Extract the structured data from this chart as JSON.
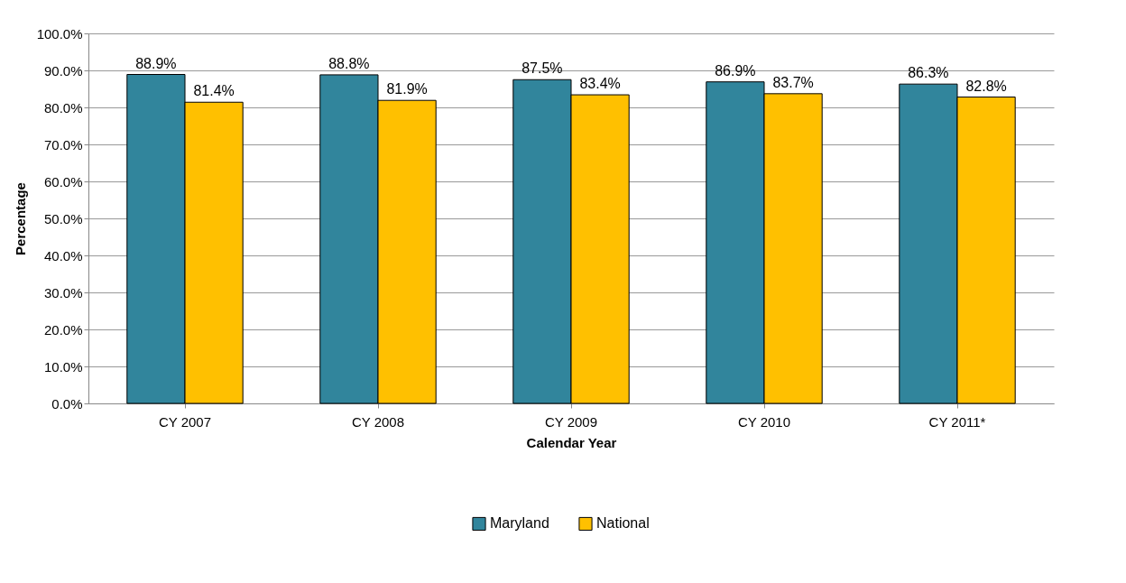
{
  "chart_data": {
    "type": "bar",
    "xlabel": "Calendar Year",
    "ylabel": "Percentage",
    "categories": [
      "CY 2007",
      "CY 2008",
      "CY 2009",
      "CY 2010",
      "CY 2011*"
    ],
    "series": [
      {
        "name": "Maryland",
        "color": "#31859c",
        "values": [
          88.9,
          88.8,
          87.5,
          86.9,
          86.3
        ],
        "value_labels": [
          "88.9%",
          "88.8%",
          "87.5%",
          "86.9%",
          "86.3%"
        ]
      },
      {
        "name": "National",
        "color": "#ffc000",
        "values": [
          81.4,
          81.9,
          83.4,
          83.7,
          82.8
        ],
        "value_labels": [
          "81.4%",
          "81.9%",
          "83.4%",
          "83.7%",
          "82.8%"
        ]
      }
    ],
    "ylim": [
      0,
      100
    ],
    "yticks": [
      {
        "value": 0,
        "label": "0.0%"
      },
      {
        "value": 10,
        "label": "10.0%"
      },
      {
        "value": 20,
        "label": "20.0%"
      },
      {
        "value": 30,
        "label": "30.0%"
      },
      {
        "value": 40,
        "label": "40.0%"
      },
      {
        "value": 50,
        "label": "50.0%"
      },
      {
        "value": 60,
        "label": "60.0%"
      },
      {
        "value": 70,
        "label": "70.0%"
      },
      {
        "value": 80,
        "label": "80.0%"
      },
      {
        "value": 90,
        "label": "90.0%"
      },
      {
        "value": 100,
        "label": "100.0%"
      }
    ],
    "grid": "y",
    "legend": "bottom"
  }
}
